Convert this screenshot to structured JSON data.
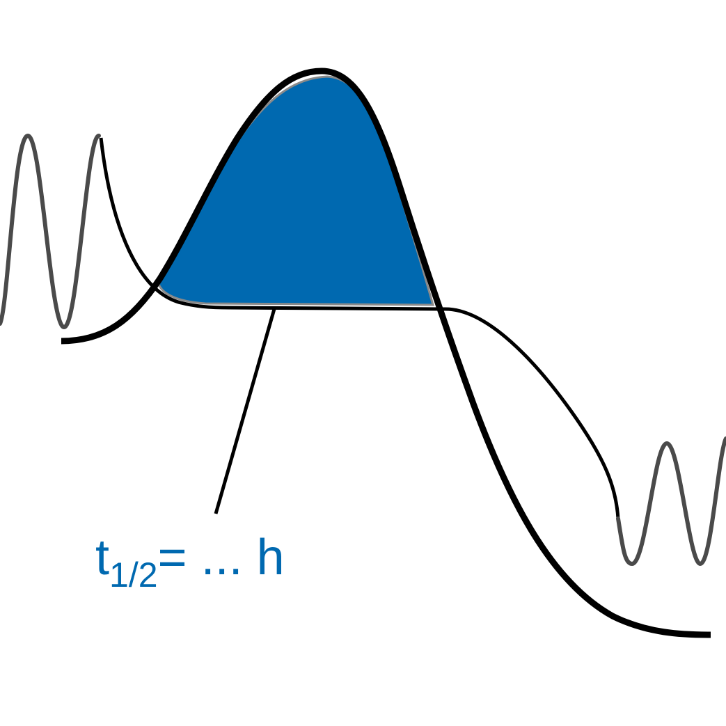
{
  "colors": {
    "background": "#ffffff",
    "barrier_fill": "#0069b0",
    "line_black": "#000000",
    "wave_gray": "#4a4a4a",
    "label": "#0069b0"
  },
  "label": {
    "t": "t",
    "subscript": "1/2",
    "rest": "= ... h"
  }
}
